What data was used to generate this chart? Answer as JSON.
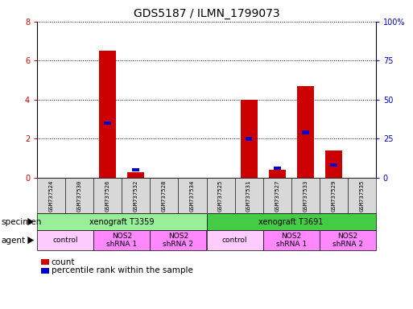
{
  "title": "GDS5187 / ILMN_1799073",
  "samples": [
    "GSM737524",
    "GSM737530",
    "GSM737526",
    "GSM737532",
    "GSM737528",
    "GSM737534",
    "GSM737525",
    "GSM737531",
    "GSM737527",
    "GSM737533",
    "GSM737529",
    "GSM737535"
  ],
  "count_values": [
    0,
    0,
    6.5,
    0.3,
    0,
    0,
    0,
    4.0,
    0.4,
    4.7,
    1.4,
    0
  ],
  "percentile_values_pct": [
    0,
    0,
    35,
    5,
    0,
    0,
    0,
    25,
    6,
    29,
    8,
    0
  ],
  "ylim_left": [
    0,
    8
  ],
  "ylim_right": [
    0,
    100
  ],
  "yticks_left": [
    0,
    2,
    4,
    6,
    8
  ],
  "yticks_right": [
    0,
    25,
    50,
    75,
    100
  ],
  "ytick_labels_right": [
    "0",
    "25",
    "50",
    "75",
    "100%"
  ],
  "count_color": "#cc0000",
  "percentile_color": "#0000cc",
  "bg_color": "#ffffff",
  "specimen_colors": [
    "#99ee99",
    "#44cc44"
  ],
  "agent_color_control": "#ffccff",
  "agent_color_nos2": "#ff88ff",
  "specimen_label": "specimen",
  "agent_label": "agent",
  "legend_count": "count",
  "legend_percentile": "percentile rank within the sample",
  "specimen_groups": [
    {
      "label": "xenograft T3359",
      "start": 0,
      "end": 6,
      "color_idx": 0
    },
    {
      "label": "xenograft T3691",
      "start": 6,
      "end": 12,
      "color_idx": 1
    }
  ],
  "agent_groups": [
    {
      "label": "control",
      "start": 0,
      "end": 2,
      "type": "control"
    },
    {
      "label": "NOS2\nshRNA 1",
      "start": 2,
      "end": 4,
      "type": "nos2"
    },
    {
      "label": "NOS2\nshRNA 2",
      "start": 4,
      "end": 6,
      "type": "nos2"
    },
    {
      "label": "control",
      "start": 6,
      "end": 8,
      "type": "control"
    },
    {
      "label": "NOS2\nshRNA 1",
      "start": 8,
      "end": 10,
      "type": "nos2"
    },
    {
      "label": "NOS2\nshRNA 2",
      "start": 10,
      "end": 12,
      "type": "nos2"
    }
  ]
}
